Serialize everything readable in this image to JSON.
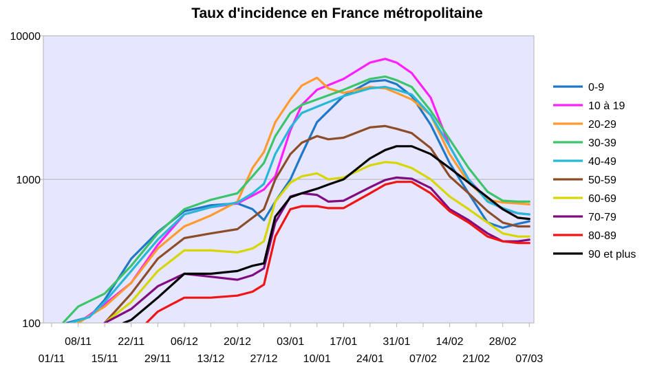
{
  "chart_data": {
    "type": "line",
    "title": "Taux d'incidence en France métropolitaine",
    "yscale": "log",
    "ylim": [
      100,
      10000
    ],
    "y_ticks": [
      {
        "label": "100",
        "value": 100
      },
      {
        "label": "1000",
        "value": 1000
      },
      {
        "label": "10000",
        "value": 10000
      }
    ],
    "xlim_day": [
      0,
      126
    ],
    "x_ticks_upper": [
      {
        "label": "08/11",
        "day": 7
      },
      {
        "label": "22/11",
        "day": 21
      },
      {
        "label": "06/12",
        "day": 35
      },
      {
        "label": "20/12",
        "day": 49
      },
      {
        "label": "03/01",
        "day": 63
      },
      {
        "label": "17/01",
        "day": 77
      },
      {
        "label": "31/01",
        "day": 91
      },
      {
        "label": "14/02",
        "day": 105
      },
      {
        "label": "28/02",
        "day": 119
      }
    ],
    "x_ticks_lower": [
      {
        "label": "01/11",
        "day": 0
      },
      {
        "label": "15/11",
        "day": 14
      },
      {
        "label": "29/11",
        "day": 28
      },
      {
        "label": "13/12",
        "day": 42
      },
      {
        "label": "27/12",
        "day": 56
      },
      {
        "label": "10/01",
        "day": 70
      },
      {
        "label": "24/01",
        "day": 84
      },
      {
        "label": "07/02",
        "day": 98
      },
      {
        "label": "21/02",
        "day": 112
      },
      {
        "label": "07/03",
        "day": 126
      }
    ],
    "legend_position": "right",
    "series": [
      {
        "name": "0-9",
        "color": "#1f77c8",
        "points": [
          [
            4,
            100
          ],
          [
            10,
            110
          ],
          [
            14,
            145
          ],
          [
            21,
            280
          ],
          [
            28,
            430
          ],
          [
            35,
            600
          ],
          [
            42,
            660
          ],
          [
            49,
            680
          ],
          [
            53,
            620
          ],
          [
            56,
            520
          ],
          [
            59,
            700
          ],
          [
            63,
            1000
          ],
          [
            66,
            1500
          ],
          [
            70,
            2500
          ],
          [
            77,
            3800
          ],
          [
            84,
            4800
          ],
          [
            88,
            4900
          ],
          [
            91,
            4600
          ],
          [
            95,
            3800
          ],
          [
            100,
            2400
          ],
          [
            105,
            1300
          ],
          [
            110,
            800
          ],
          [
            115,
            500
          ],
          [
            119,
            460
          ],
          [
            123,
            490
          ],
          [
            126,
            510
          ]
        ]
      },
      {
        "name": "10 à 19",
        "color": "#ff1fff",
        "points": [
          [
            7,
            100
          ],
          [
            14,
            135
          ],
          [
            21,
            190
          ],
          [
            28,
            350
          ],
          [
            35,
            570
          ],
          [
            42,
            640
          ],
          [
            49,
            680
          ],
          [
            53,
            770
          ],
          [
            56,
            850
          ],
          [
            59,
            1050
          ],
          [
            63,
            2200
          ],
          [
            66,
            3300
          ],
          [
            70,
            4200
          ],
          [
            77,
            5000
          ],
          [
            84,
            6500
          ],
          [
            88,
            6900
          ],
          [
            91,
            6500
          ],
          [
            95,
            5500
          ],
          [
            100,
            3700
          ],
          [
            105,
            1700
          ],
          [
            110,
            1000
          ],
          [
            115,
            720
          ],
          [
            119,
            620
          ],
          [
            123,
            580
          ],
          [
            126,
            570
          ]
        ]
      },
      {
        "name": "20-29",
        "color": "#ff9a2e",
        "points": [
          [
            7,
            100
          ],
          [
            14,
            130
          ],
          [
            21,
            190
          ],
          [
            28,
            330
          ],
          [
            35,
            470
          ],
          [
            42,
            560
          ],
          [
            49,
            700
          ],
          [
            53,
            1200
          ],
          [
            56,
            1550
          ],
          [
            59,
            2500
          ],
          [
            63,
            3600
          ],
          [
            66,
            4500
          ],
          [
            70,
            5100
          ],
          [
            73,
            4300
          ],
          [
            77,
            4000
          ],
          [
            84,
            4400
          ],
          [
            88,
            4300
          ],
          [
            91,
            4000
          ],
          [
            95,
            3600
          ],
          [
            100,
            2800
          ],
          [
            105,
            1500
          ],
          [
            110,
            950
          ],
          [
            115,
            720
          ],
          [
            119,
            690
          ],
          [
            123,
            680
          ],
          [
            126,
            670
          ]
        ]
      },
      {
        "name": "30-39",
        "color": "#3bc46a",
        "points": [
          [
            3,
            100
          ],
          [
            7,
            130
          ],
          [
            14,
            160
          ],
          [
            21,
            250
          ],
          [
            28,
            420
          ],
          [
            35,
            620
          ],
          [
            42,
            720
          ],
          [
            49,
            800
          ],
          [
            53,
            1050
          ],
          [
            56,
            1300
          ],
          [
            59,
            2000
          ],
          [
            63,
            2900
          ],
          [
            66,
            3300
          ],
          [
            70,
            3600
          ],
          [
            77,
            4200
          ],
          [
            84,
            5000
          ],
          [
            88,
            5200
          ],
          [
            91,
            4900
          ],
          [
            95,
            4400
          ],
          [
            100,
            3000
          ],
          [
            105,
            1900
          ],
          [
            110,
            1200
          ],
          [
            115,
            820
          ],
          [
            119,
            710
          ],
          [
            123,
            700
          ],
          [
            126,
            700
          ]
        ]
      },
      {
        "name": "40-49",
        "color": "#25b8d8",
        "points": [
          [
            5,
            100
          ],
          [
            10,
            110
          ],
          [
            14,
            140
          ],
          [
            21,
            230
          ],
          [
            28,
            380
          ],
          [
            35,
            570
          ],
          [
            42,
            640
          ],
          [
            49,
            690
          ],
          [
            53,
            800
          ],
          [
            56,
            930
          ],
          [
            59,
            1500
          ],
          [
            63,
            2300
          ],
          [
            66,
            2900
          ],
          [
            70,
            3200
          ],
          [
            77,
            3800
          ],
          [
            84,
            4300
          ],
          [
            88,
            4400
          ],
          [
            91,
            4200
          ],
          [
            95,
            3900
          ],
          [
            100,
            2800
          ],
          [
            105,
            1700
          ],
          [
            110,
            1000
          ],
          [
            115,
            700
          ],
          [
            119,
            630
          ],
          [
            123,
            580
          ],
          [
            126,
            570
          ]
        ]
      },
      {
        "name": "50-59",
        "color": "#8c4d28",
        "points": [
          [
            14,
            100
          ],
          [
            21,
            160
          ],
          [
            28,
            280
          ],
          [
            35,
            390
          ],
          [
            42,
            420
          ],
          [
            49,
            450
          ],
          [
            53,
            540
          ],
          [
            56,
            620
          ],
          [
            59,
            1000
          ],
          [
            63,
            1500
          ],
          [
            66,
            1800
          ],
          [
            70,
            2000
          ],
          [
            73,
            1900
          ],
          [
            77,
            1950
          ],
          [
            84,
            2300
          ],
          [
            88,
            2350
          ],
          [
            91,
            2250
          ],
          [
            95,
            2100
          ],
          [
            100,
            1650
          ],
          [
            105,
            1050
          ],
          [
            110,
            800
          ],
          [
            115,
            600
          ],
          [
            119,
            500
          ],
          [
            123,
            470
          ],
          [
            126,
            470
          ]
        ]
      },
      {
        "name": "60-69",
        "color": "#d6d600",
        "points": [
          [
            14,
            100
          ],
          [
            21,
            140
          ],
          [
            28,
            230
          ],
          [
            35,
            320
          ],
          [
            42,
            320
          ],
          [
            49,
            310
          ],
          [
            53,
            330
          ],
          [
            56,
            370
          ],
          [
            59,
            700
          ],
          [
            63,
            950
          ],
          [
            66,
            1050
          ],
          [
            70,
            1100
          ],
          [
            73,
            1000
          ],
          [
            77,
            1030
          ],
          [
            84,
            1250
          ],
          [
            88,
            1320
          ],
          [
            91,
            1300
          ],
          [
            95,
            1200
          ],
          [
            100,
            1000
          ],
          [
            105,
            760
          ],
          [
            110,
            620
          ],
          [
            115,
            500
          ],
          [
            119,
            420
          ],
          [
            123,
            400
          ],
          [
            126,
            400
          ]
        ]
      },
      {
        "name": "70-79",
        "color": "#800c80",
        "points": [
          [
            14,
            100
          ],
          [
            21,
            125
          ],
          [
            28,
            180
          ],
          [
            35,
            220
          ],
          [
            42,
            210
          ],
          [
            49,
            200
          ],
          [
            53,
            215
          ],
          [
            56,
            240
          ],
          [
            59,
            500
          ],
          [
            63,
            760
          ],
          [
            66,
            800
          ],
          [
            70,
            780
          ],
          [
            73,
            700
          ],
          [
            77,
            710
          ],
          [
            84,
            880
          ],
          [
            88,
            990
          ],
          [
            91,
            1030
          ],
          [
            95,
            1010
          ],
          [
            100,
            870
          ],
          [
            105,
            620
          ],
          [
            110,
            520
          ],
          [
            115,
            420
          ],
          [
            119,
            370
          ],
          [
            123,
            370
          ],
          [
            126,
            380
          ]
        ]
      },
      {
        "name": "80-89",
        "color": "#f01414",
        "points": [
          [
            25,
            100
          ],
          [
            28,
            120
          ],
          [
            35,
            150
          ],
          [
            42,
            150
          ],
          [
            49,
            155
          ],
          [
            53,
            165
          ],
          [
            56,
            185
          ],
          [
            59,
            400
          ],
          [
            63,
            620
          ],
          [
            66,
            650
          ],
          [
            70,
            650
          ],
          [
            73,
            630
          ],
          [
            77,
            630
          ],
          [
            84,
            800
          ],
          [
            88,
            920
          ],
          [
            91,
            960
          ],
          [
            95,
            960
          ],
          [
            100,
            800
          ],
          [
            105,
            600
          ],
          [
            110,
            500
          ],
          [
            115,
            400
          ],
          [
            119,
            370
          ],
          [
            123,
            360
          ],
          [
            126,
            360
          ]
        ]
      },
      {
        "name": "90 et plus",
        "color": "#000000",
        "points": [
          [
            19,
            100
          ],
          [
            21,
            105
          ],
          [
            28,
            150
          ],
          [
            35,
            220
          ],
          [
            42,
            220
          ],
          [
            49,
            230
          ],
          [
            53,
            250
          ],
          [
            56,
            260
          ],
          [
            59,
            550
          ],
          [
            63,
            750
          ],
          [
            66,
            800
          ],
          [
            70,
            860
          ],
          [
            73,
            920
          ],
          [
            77,
            1000
          ],
          [
            84,
            1400
          ],
          [
            88,
            1600
          ],
          [
            91,
            1700
          ],
          [
            95,
            1700
          ],
          [
            100,
            1500
          ],
          [
            105,
            1200
          ],
          [
            110,
            950
          ],
          [
            115,
            750
          ],
          [
            119,
            620
          ],
          [
            123,
            540
          ],
          [
            126,
            530
          ]
        ]
      }
    ]
  }
}
